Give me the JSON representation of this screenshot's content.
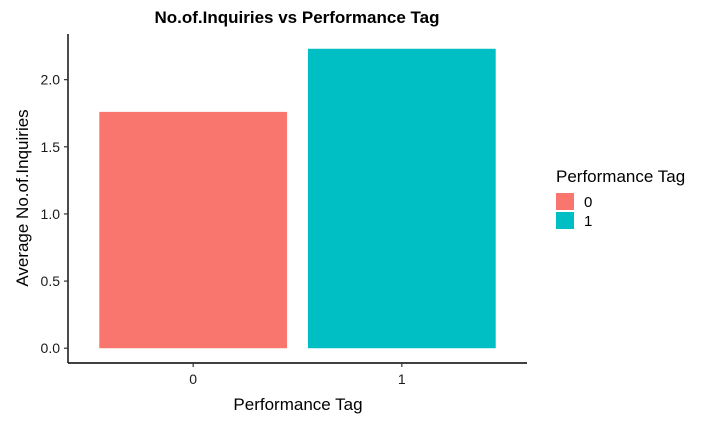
{
  "chart_data": {
    "type": "bar",
    "title": "No.of.Inquiries vs Performance Tag",
    "xlabel": "Performance Tag",
    "ylabel": "Average No.of.Inquiries",
    "categories": [
      "0",
      "1"
    ],
    "values": [
      1.76,
      2.23
    ],
    "colors": [
      "#F8766D",
      "#00BFC4"
    ],
    "ylim": [
      -0.11,
      2.34
    ],
    "yticks": [
      0.0,
      0.5,
      1.0,
      1.5,
      2.0
    ],
    "ytick_labels": [
      "0.0",
      "0.5",
      "1.0",
      "1.5",
      "2.0"
    ],
    "grid": false,
    "legend": {
      "title": "Performance Tag",
      "position": "right",
      "entries": [
        "0",
        "1"
      ]
    }
  }
}
